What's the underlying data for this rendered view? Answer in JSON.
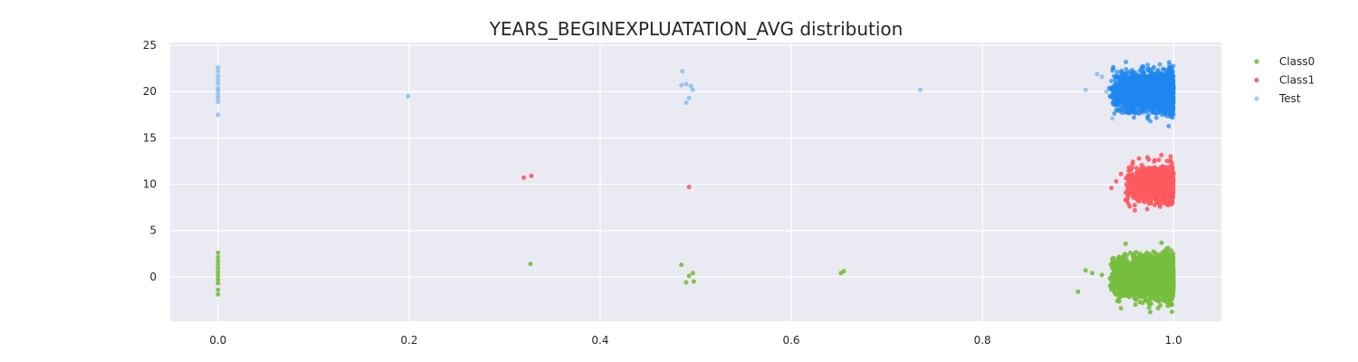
{
  "chart_data": {
    "type": "scatter",
    "title": "YEARS_BEGINEXPLUATATION_AVG distribution",
    "xlabel": "",
    "ylabel": "",
    "xlim": [
      -0.05,
      1.05
    ],
    "ylim": [
      -4.8,
      25.3
    ],
    "x_ticks": [
      0.0,
      0.2,
      0.4,
      0.6,
      0.8,
      1.0
    ],
    "y_ticks": [
      0,
      5,
      10,
      15,
      20,
      25
    ],
    "x_tick_labels": [
      "0.0",
      "0.2",
      "0.4",
      "0.6",
      "0.8",
      "1.0"
    ],
    "y_tick_labels": [
      "0",
      "5",
      "10",
      "15",
      "20",
      "25"
    ],
    "grid": true,
    "legend_position": "outside-top-right",
    "colors": {
      "background": "#EAEAF2",
      "grid": "#FFFFFF",
      "Class0": "#77BE3D",
      "Class1": "#FF5A5F",
      "Test": "#5FAAF0",
      "Test_dense": "#1E88F0"
    },
    "series": [
      {
        "name": "Class0",
        "outliers": [
          [
            0.0,
            2.6
          ],
          [
            0.0,
            2.1
          ],
          [
            0.0,
            1.7
          ],
          [
            0.0,
            1.3
          ],
          [
            0.0,
            0.9
          ],
          [
            0.0,
            0.5
          ],
          [
            0.0,
            0.1
          ],
          [
            0.0,
            -0.3
          ],
          [
            0.0,
            -0.7
          ],
          [
            0.0,
            -1.4
          ],
          [
            0.0,
            -1.9
          ],
          [
            0.327,
            1.4
          ],
          [
            0.485,
            1.3
          ],
          [
            0.493,
            0.1
          ],
          [
            0.497,
            0.4
          ],
          [
            0.49,
            -0.6
          ],
          [
            0.498,
            -0.5
          ],
          [
            0.652,
            0.4
          ],
          [
            0.655,
            0.6
          ],
          [
            0.9,
            -1.6
          ],
          [
            0.908,
            0.7
          ],
          [
            0.915,
            0.4
          ],
          [
            0.925,
            0.2
          ]
        ],
        "cluster": {
          "x_range": [
            0.94,
            1.0
          ],
          "x_mode": 0.985,
          "y_center": 0.0,
          "y_spread": 1.5,
          "count": 4500
        }
      },
      {
        "name": "Class1",
        "outliers": [
          [
            0.32,
            10.7
          ],
          [
            0.328,
            10.9
          ],
          [
            0.493,
            9.7
          ],
          [
            0.935,
            9.6
          ],
          [
            0.94,
            10.3
          ],
          [
            0.945,
            11.1
          ],
          [
            0.95,
            9.1
          ],
          [
            0.952,
            10.6
          ]
        ],
        "cluster": {
          "x_range": [
            0.955,
            1.0
          ],
          "x_mode": 0.985,
          "y_center": 10.0,
          "y_spread": 1.5,
          "count": 1100
        }
      },
      {
        "name": "Test",
        "outliers": [
          [
            0.0,
            22.6
          ],
          [
            0.0,
            22.2
          ],
          [
            0.0,
            21.7
          ],
          [
            0.0,
            21.3
          ],
          [
            0.0,
            20.9
          ],
          [
            0.0,
            20.4
          ],
          [
            0.0,
            20.1
          ],
          [
            0.0,
            19.7
          ],
          [
            0.0,
            19.3
          ],
          [
            0.0,
            18.9
          ],
          [
            0.0,
            17.5
          ],
          [
            0.199,
            19.5
          ],
          [
            0.486,
            22.2
          ],
          [
            0.485,
            20.7
          ],
          [
            0.49,
            20.8
          ],
          [
            0.495,
            20.6
          ],
          [
            0.497,
            20.2
          ],
          [
            0.49,
            18.8
          ],
          [
            0.493,
            19.3
          ],
          [
            0.735,
            20.2
          ],
          [
            0.908,
            20.2
          ],
          [
            0.92,
            21.9
          ],
          [
            0.925,
            21.6
          ],
          [
            0.93,
            20.0
          ],
          [
            0.936,
            17.1
          ],
          [
            0.94,
            21.2
          ]
        ],
        "cluster": {
          "x_range": [
            0.94,
            1.0
          ],
          "x_mode": 0.985,
          "y_center": 20.0,
          "y_spread": 1.5,
          "count": 3800
        }
      }
    ]
  }
}
